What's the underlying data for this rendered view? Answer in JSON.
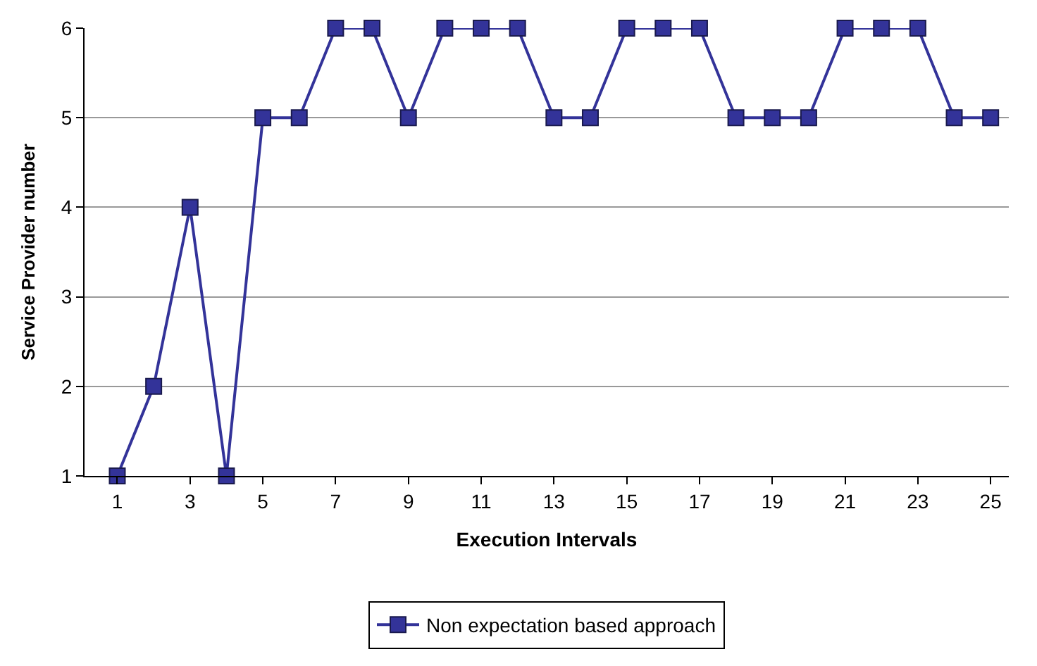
{
  "chart_data": {
    "type": "line",
    "xlabel": "Execution Intervals",
    "ylabel": "Service Provider number",
    "x": [
      1,
      2,
      3,
      4,
      5,
      6,
      7,
      8,
      9,
      10,
      11,
      12,
      13,
      14,
      15,
      16,
      17,
      18,
      19,
      20,
      21,
      22,
      23,
      24,
      25
    ],
    "series": [
      {
        "name": "Non expectation based approach",
        "color": "#333399",
        "values": [
          1,
          2,
          4,
          1,
          5,
          5,
          6,
          6,
          5,
          6,
          6,
          6,
          5,
          5,
          6,
          6,
          6,
          5,
          5,
          5,
          6,
          6,
          6,
          5,
          5
        ]
      }
    ],
    "xlim": [
      0.1,
      25.5
    ],
    "xticks": [
      1,
      3,
      5,
      7,
      9,
      11,
      13,
      15,
      17,
      19,
      21,
      23,
      25
    ],
    "ylim": [
      1,
      6
    ],
    "yticks": [
      1,
      2,
      3,
      4,
      5,
      6
    ],
    "grid": "y",
    "legend": "bottom",
    "marker": "square",
    "line_style": "solid"
  }
}
